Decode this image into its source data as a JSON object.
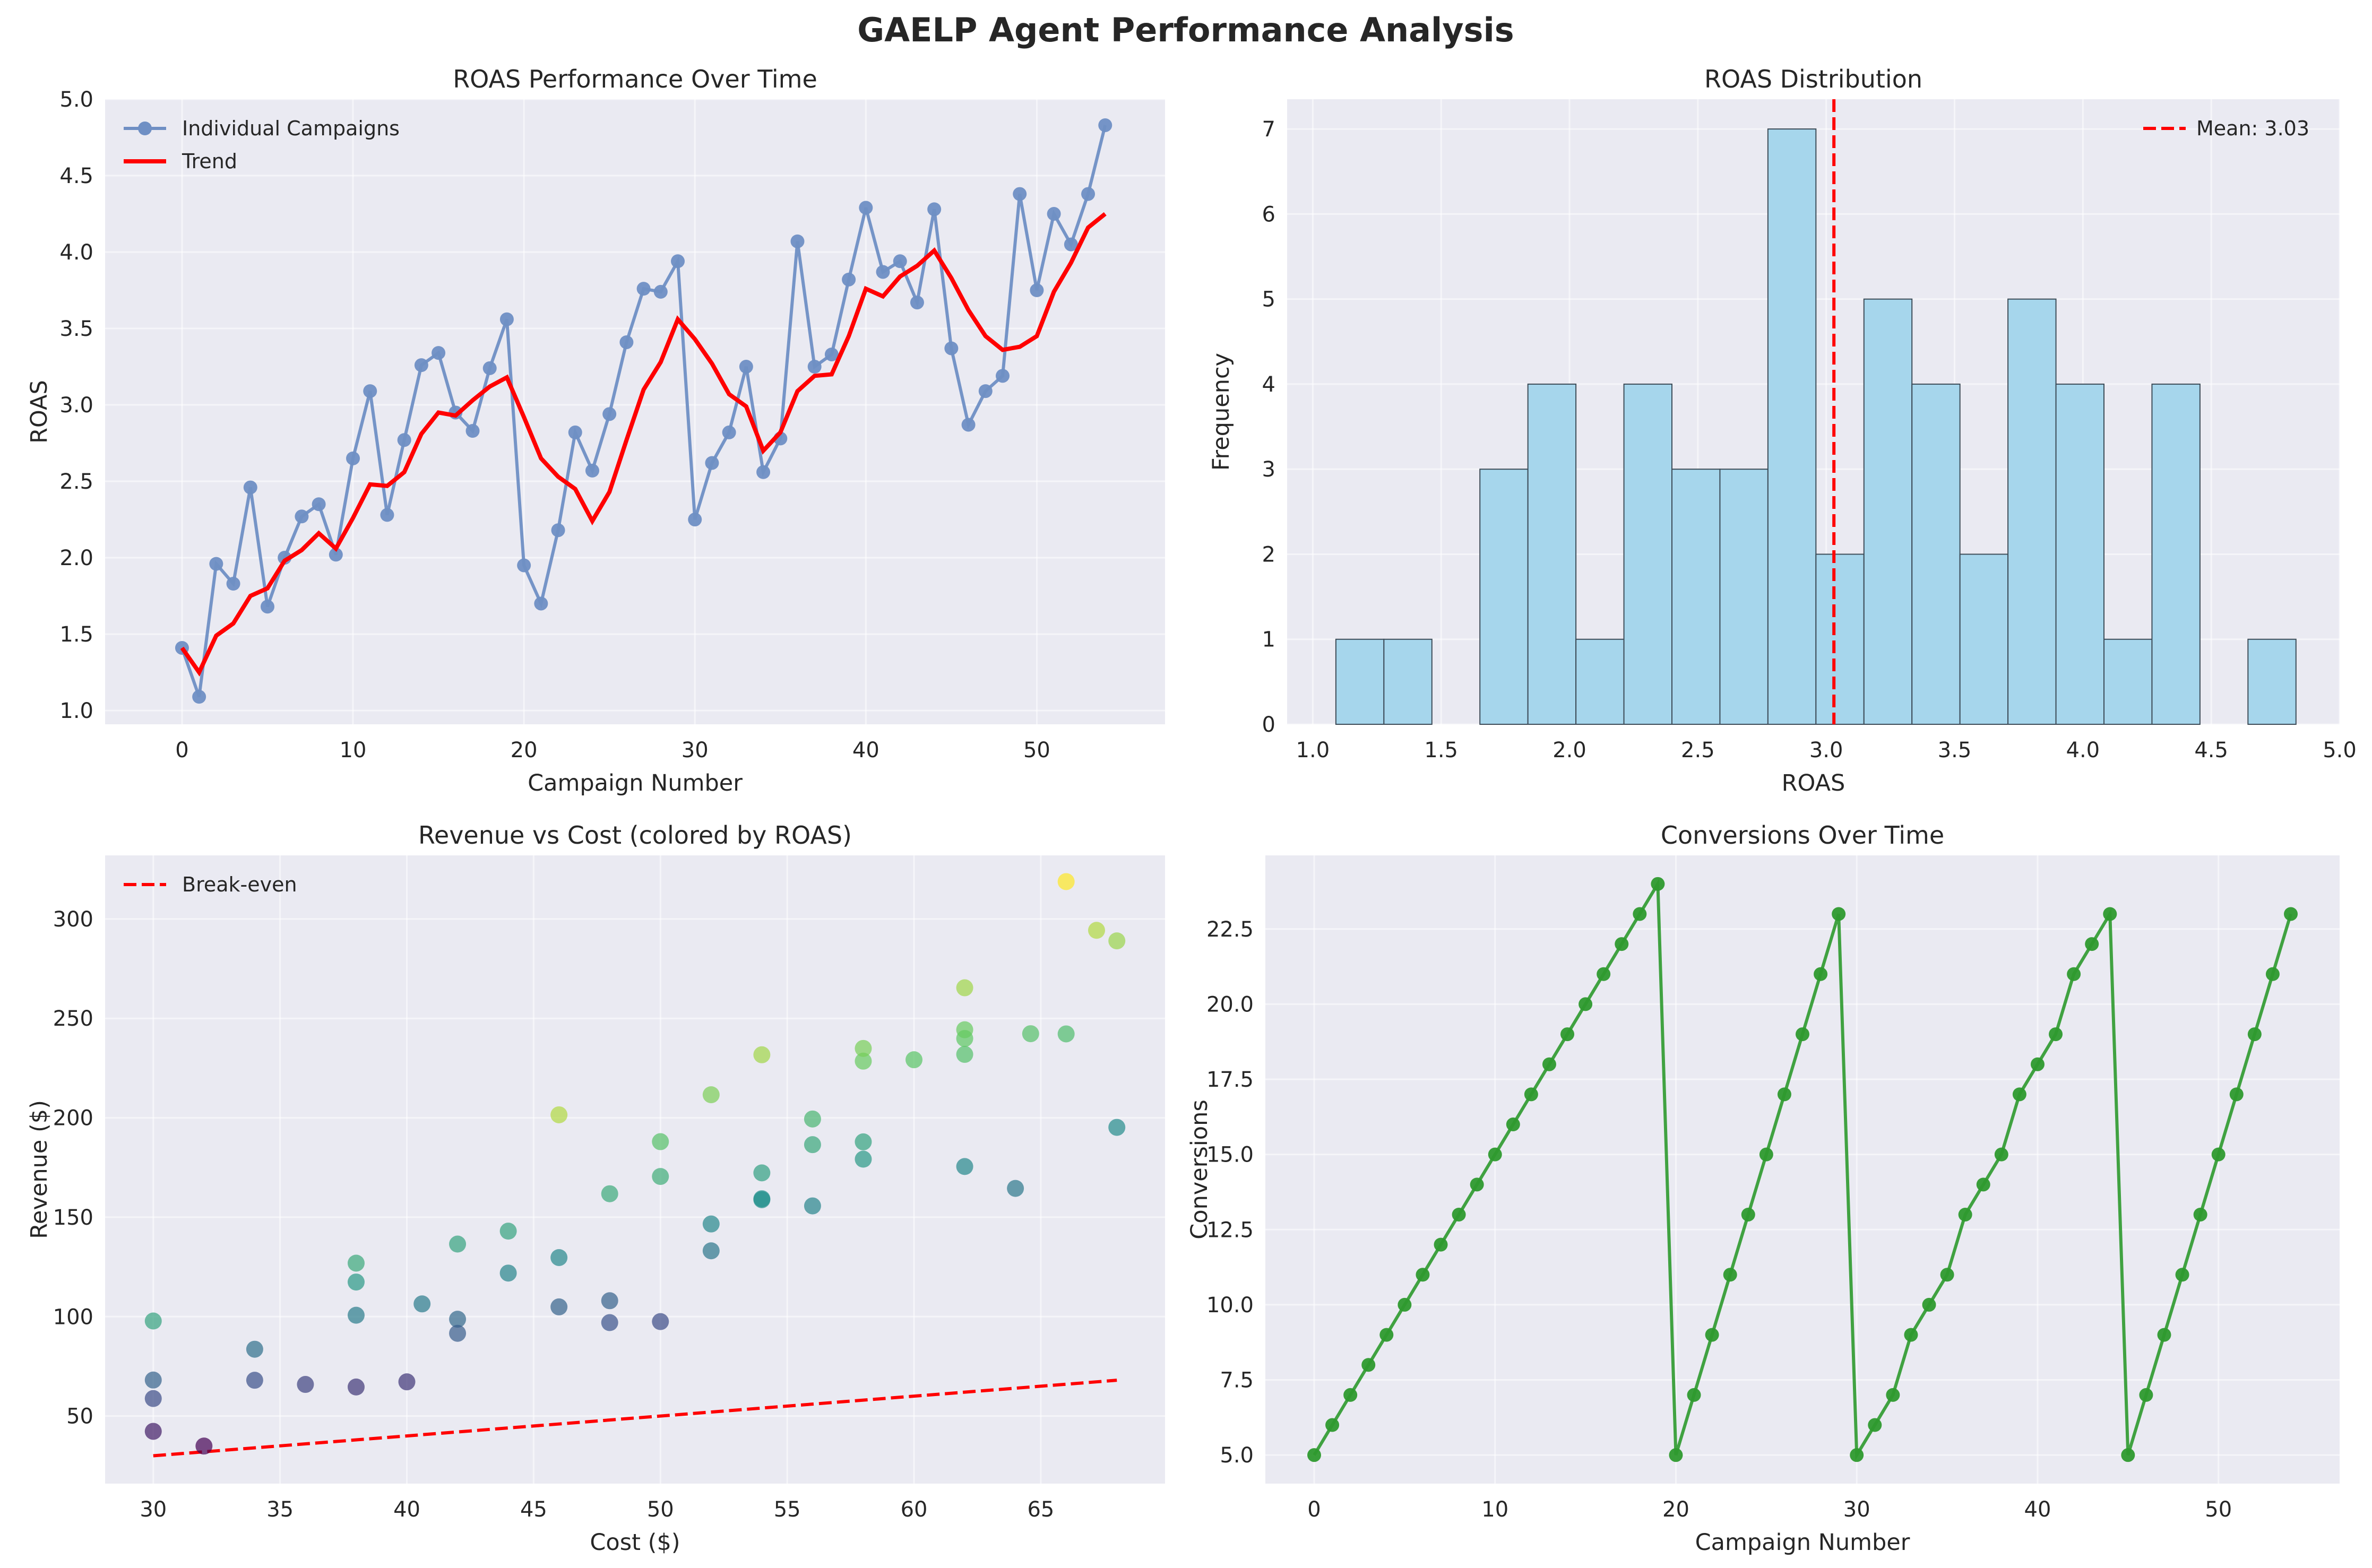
{
  "figure": {
    "title": "GAELP Agent Performance Analysis"
  },
  "colors": {
    "panel_bg": "#EAEAF2",
    "grid": "#FFFFFF",
    "line_blue": "#6F8FC4",
    "trend_red": "#FF0000",
    "hist_fill": "#A6D6EC",
    "hist_edge": "#3C4B57",
    "green": "#2E9A2E"
  },
  "chart_data": [
    {
      "id": "roas_time",
      "type": "line",
      "title": "ROAS Performance Over Time",
      "xlabel": "Campaign Number",
      "ylabel": "ROAS",
      "xlim": [
        -4.5,
        57.5
      ],
      "ylim": [
        0.91,
        5.0
      ],
      "xticks": [
        0,
        10,
        20,
        30,
        40,
        50
      ],
      "yticks": [
        1.0,
        1.5,
        2.0,
        2.5,
        3.0,
        3.5,
        4.0,
        4.5,
        5.0
      ],
      "grid": true,
      "legend_position": "upper left",
      "series": [
        {
          "name": "Individual Campaigns",
          "marker": "circle",
          "x": [
            0,
            1,
            2,
            3,
            4,
            5,
            6,
            7,
            8,
            9,
            10,
            11,
            12,
            13,
            14,
            15,
            16,
            17,
            18,
            19,
            20,
            21,
            22,
            23,
            24,
            25,
            26,
            27,
            28,
            29,
            30,
            31,
            32,
            33,
            34,
            35,
            36,
            37,
            38,
            39,
            40,
            41,
            42,
            43,
            44,
            45,
            46,
            47,
            48,
            49,
            50,
            51,
            52,
            53,
            54
          ],
          "values": [
            1.41,
            1.09,
            1.96,
            1.83,
            2.46,
            1.68,
            2.0,
            2.27,
            2.35,
            2.02,
            2.65,
            3.09,
            2.28,
            2.77,
            3.26,
            3.34,
            2.95,
            2.83,
            3.24,
            3.56,
            1.95,
            1.7,
            2.18,
            2.82,
            2.57,
            2.94,
            3.41,
            3.76,
            3.74,
            3.94,
            2.25,
            2.62,
            2.82,
            3.25,
            2.56,
            2.78,
            4.07,
            3.25,
            3.33,
            3.82,
            4.29,
            3.87,
            3.94,
            3.67,
            4.28,
            3.37,
            2.87,
            3.09,
            3.19,
            4.38,
            3.75,
            4.25,
            4.05,
            4.38,
            4.83
          ]
        },
        {
          "name": "Trend",
          "marker": "none",
          "x": [
            0,
            1,
            2,
            3,
            4,
            5,
            6,
            7,
            8,
            9,
            10,
            11,
            12,
            13,
            14,
            15,
            16,
            17,
            18,
            19,
            20,
            21,
            22,
            23,
            24,
            25,
            26,
            27,
            28,
            29,
            30,
            31,
            32,
            33,
            34,
            35,
            36,
            37,
            38,
            39,
            40,
            41,
            42,
            43,
            44,
            45,
            46,
            47,
            48,
            49,
            50,
            51,
            52,
            53,
            54
          ],
          "values": [
            1.41,
            1.25,
            1.49,
            1.57,
            1.75,
            1.8,
            1.98,
            2.05,
            2.16,
            2.06,
            2.26,
            2.48,
            2.47,
            2.56,
            2.81,
            2.95,
            2.93,
            3.03,
            3.12,
            3.18,
            2.92,
            2.65,
            2.53,
            2.45,
            2.24,
            2.43,
            2.77,
            3.1,
            3.28,
            3.56,
            3.43,
            3.27,
            3.07,
            2.99,
            2.7,
            2.82,
            3.09,
            3.19,
            3.2,
            3.45,
            3.76,
            3.71,
            3.84,
            3.91,
            4.01,
            3.83,
            3.62,
            3.45,
            3.36,
            3.38,
            3.45,
            3.74,
            3.93,
            4.16,
            4.25
          ]
        }
      ]
    },
    {
      "id": "roas_hist",
      "type": "bar",
      "subtype": "histogram",
      "title": "ROAS Distribution",
      "xlabel": "ROAS",
      "ylabel": "Frequency",
      "xlim": [
        0.9,
        5.0
      ],
      "ylim": [
        0,
        7.35
      ],
      "xticks": [
        1.0,
        1.5,
        2.0,
        2.5,
        3.0,
        3.5,
        4.0,
        4.5,
        5.0
      ],
      "yticks": [
        0,
        1,
        2,
        3,
        4,
        5,
        6,
        7
      ],
      "grid": true,
      "legend_position": "upper right",
      "bin_edges": [
        1.09,
        1.277,
        1.464,
        1.651,
        1.838,
        2.025,
        2.212,
        2.399,
        2.586,
        2.773,
        2.96,
        3.147,
        3.334,
        3.521,
        3.708,
        3.895,
        4.082,
        4.269,
        4.456,
        4.643,
        4.83
      ],
      "counts": [
        1,
        1,
        0,
        3,
        4,
        1,
        4,
        3,
        3,
        7,
        2,
        5,
        4,
        2,
        5,
        4,
        1,
        4,
        0,
        1
      ],
      "mean": 3.03,
      "mean_label": "Mean: 3.03"
    },
    {
      "id": "rev_cost",
      "type": "scatter",
      "title": "Revenue vs Cost (colored by ROAS)",
      "xlabel": "Cost ($)",
      "ylabel": "Revenue ($)",
      "xlim": [
        28.1,
        69.9
      ],
      "ylim": [
        16,
        332
      ],
      "xticks": [
        30,
        35,
        40,
        45,
        50,
        55,
        60,
        65
      ],
      "yticks": [
        50,
        100,
        150,
        200,
        250,
        300
      ],
      "grid": true,
      "legend_position": "upper left",
      "colormap": "viridis",
      "color_range": [
        1.09,
        4.83
      ],
      "break_even": {
        "name": "Break-even",
        "x": [
          30,
          68
        ],
        "values": [
          30,
          68
        ]
      },
      "points": [
        {
          "x": 30.0,
          "y": 42.3,
          "c": 1.41
        },
        {
          "x": 32.0,
          "y": 34.9,
          "c": 1.09
        },
        {
          "x": 30.0,
          "y": 58.8,
          "c": 1.96
        },
        {
          "x": 36.0,
          "y": 65.9,
          "c": 1.83
        },
        {
          "x": 34.0,
          "y": 83.6,
          "c": 2.46
        },
        {
          "x": 40.0,
          "y": 67.2,
          "c": 1.68
        },
        {
          "x": 34.0,
          "y": 68.0,
          "c": 2.0
        },
        {
          "x": 30.0,
          "y": 68.1,
          "c": 2.27
        },
        {
          "x": 42.0,
          "y": 98.7,
          "c": 2.35
        },
        {
          "x": 48.0,
          "y": 97.0,
          "c": 2.02
        },
        {
          "x": 38.0,
          "y": 100.7,
          "c": 2.65
        },
        {
          "x": 38.0,
          "y": 117.4,
          "c": 3.09
        },
        {
          "x": 46.0,
          "y": 104.9,
          "c": 2.28
        },
        {
          "x": 44.0,
          "y": 121.9,
          "c": 2.77
        },
        {
          "x": 30.0,
          "y": 97.8,
          "c": 3.26
        },
        {
          "x": 38.0,
          "y": 126.9,
          "c": 3.34
        },
        {
          "x": 54.0,
          "y": 159.3,
          "c": 2.95
        },
        {
          "x": 62.0,
          "y": 175.5,
          "c": 2.83
        },
        {
          "x": 58.0,
          "y": 187.9,
          "c": 3.24
        },
        {
          "x": 56.0,
          "y": 199.4,
          "c": 3.56
        },
        {
          "x": 50.0,
          "y": 97.5,
          "c": 1.95
        },
        {
          "x": 38.0,
          "y": 64.6,
          "c": 1.7
        },
        {
          "x": 42.0,
          "y": 91.6,
          "c": 2.18
        },
        {
          "x": 46.0,
          "y": 129.7,
          "c": 2.82
        },
        {
          "x": 64.0,
          "y": 164.5,
          "c": 2.57
        },
        {
          "x": 54.0,
          "y": 158.8,
          "c": 2.94
        },
        {
          "x": 50.0,
          "y": 170.5,
          "c": 3.41
        },
        {
          "x": 50.0,
          "y": 188.0,
          "c": 3.76
        },
        {
          "x": 62.0,
          "y": 231.9,
          "c": 3.74
        },
        {
          "x": 58.0,
          "y": 228.5,
          "c": 3.94
        },
        {
          "x": 48.0,
          "y": 108.0,
          "c": 2.25
        },
        {
          "x": 40.6,
          "y": 106.4,
          "c": 2.62
        },
        {
          "x": 52.0,
          "y": 146.6,
          "c": 2.82
        },
        {
          "x": 42.0,
          "y": 136.5,
          "c": 3.25
        },
        {
          "x": 52.0,
          "y": 133.1,
          "c": 2.56
        },
        {
          "x": 56.0,
          "y": 155.7,
          "c": 2.78
        },
        {
          "x": 52.0,
          "y": 211.6,
          "c": 4.07
        },
        {
          "x": 44.0,
          "y": 143.0,
          "c": 3.25
        },
        {
          "x": 56.0,
          "y": 186.5,
          "c": 3.33
        },
        {
          "x": 60.0,
          "y": 229.2,
          "c": 3.82
        },
        {
          "x": 54.0,
          "y": 231.7,
          "c": 4.29
        },
        {
          "x": 62.0,
          "y": 239.9,
          "c": 3.87
        },
        {
          "x": 62.0,
          "y": 244.3,
          "c": 3.94
        },
        {
          "x": 66.0,
          "y": 242.2,
          "c": 3.67
        },
        {
          "x": 62.0,
          "y": 265.4,
          "c": 4.28
        },
        {
          "x": 48.0,
          "y": 161.8,
          "c": 3.37
        },
        {
          "x": 68.0,
          "y": 195.2,
          "c": 2.87
        },
        {
          "x": 58.0,
          "y": 179.2,
          "c": 3.09
        },
        {
          "x": 54.0,
          "y": 172.3,
          "c": 3.19
        },
        {
          "x": 67.2,
          "y": 294.3,
          "c": 4.38
        },
        {
          "x": 64.6,
          "y": 242.3,
          "c": 3.75
        },
        {
          "x": 68.0,
          "y": 289.0,
          "c": 4.25
        },
        {
          "x": 58.0,
          "y": 234.9,
          "c": 4.05
        },
        {
          "x": 46.0,
          "y": 201.5,
          "c": 4.38
        },
        {
          "x": 66.0,
          "y": 318.8,
          "c": 4.83
        }
      ]
    },
    {
      "id": "conv_time",
      "type": "line",
      "title": "Conversions Over Time",
      "xlabel": "Campaign Number",
      "ylabel": "Conversions",
      "xlim": [
        -2.7,
        56.7
      ],
      "ylim": [
        4.05,
        24.95
      ],
      "xticks": [
        0,
        10,
        20,
        30,
        40,
        50
      ],
      "yticks": [
        5.0,
        7.5,
        10.0,
        12.5,
        15.0,
        17.5,
        20.0,
        22.5
      ],
      "ytick_labels": [
        "5.0",
        "7.5",
        "10.0",
        "12.5",
        "15.0",
        "17.5",
        "20.0",
        "22.5"
      ],
      "grid": true,
      "series": [
        {
          "marker": "circle",
          "x": [
            0,
            1,
            2,
            3,
            4,
            5,
            6,
            7,
            8,
            9,
            10,
            11,
            12,
            13,
            14,
            15,
            16,
            17,
            18,
            19,
            20,
            21,
            22,
            23,
            24,
            25,
            26,
            27,
            28,
            29,
            30,
            31,
            32,
            33,
            34,
            35,
            36,
            37,
            38,
            39,
            40,
            41,
            42,
            43,
            44,
            45,
            46,
            47,
            48,
            49,
            50,
            51,
            52,
            53,
            54
          ],
          "values": [
            5,
            6,
            7,
            8,
            9,
            10,
            11,
            12,
            13,
            14,
            15,
            16,
            17,
            18,
            19,
            20,
            21,
            22,
            23,
            24,
            5,
            7,
            9,
            11,
            13,
            15,
            17,
            19,
            21,
            23,
            5,
            6,
            7,
            9,
            10,
            11,
            13,
            14,
            15,
            17,
            18,
            19,
            21,
            22,
            23,
            5,
            7,
            9,
            11,
            13,
            15,
            17,
            19,
            21,
            23
          ]
        }
      ]
    }
  ]
}
